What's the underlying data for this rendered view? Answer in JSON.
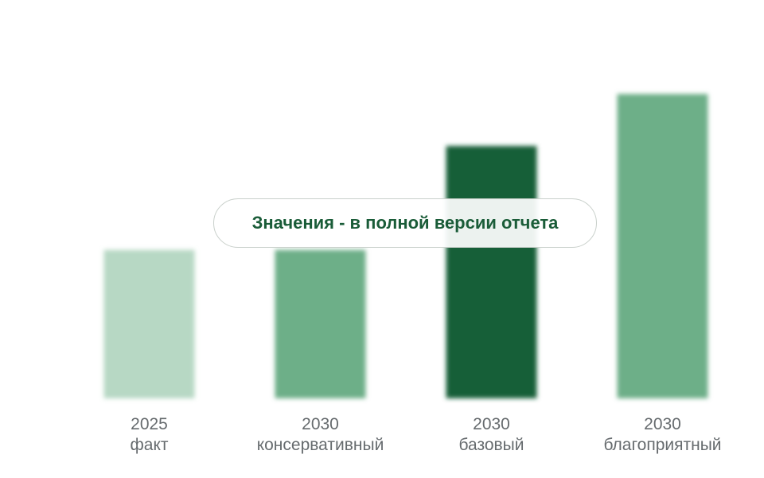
{
  "chart_data": {
    "type": "bar",
    "categories": [
      [
        "2025",
        "факт"
      ],
      [
        "2030",
        "консервативный"
      ],
      [
        "2030",
        "базовый"
      ],
      [
        "2030",
        "благоприятный"
      ]
    ],
    "values": [
      100,
      100,
      170,
      205
    ],
    "colors": [
      "#b7d8c4",
      "#6daf88",
      "#175e38",
      "#6daf88"
    ],
    "ylim": [
      0,
      205
    ],
    "grid": false,
    "legend": false,
    "blurred": true
  },
  "overlay": {
    "notice_text": "Значения - в полной версии отчета"
  }
}
